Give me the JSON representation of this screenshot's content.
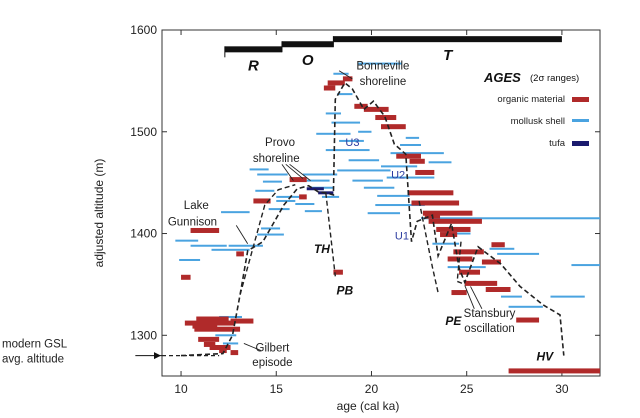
{
  "chart_data": {
    "type": "scatter",
    "xlabel": "age (cal ka)",
    "ylabel": "adjusted altitude (m)",
    "xlim": [
      9,
      32
    ],
    "ylim": [
      1260,
      1600
    ],
    "xticks": [
      10,
      15,
      20,
      25,
      30
    ],
    "yticks": [
      1300,
      1400,
      1500,
      1600
    ],
    "legend": {
      "title": "AGES",
      "subtitle": "(2σ ranges)",
      "placement": "top-right",
      "entries": [
        {
          "label": "organic material",
          "color": "#b02a2a"
        },
        {
          "label": "mollusk shell",
          "color": "#4aa3e0"
        },
        {
          "label": "tufa",
          "color": "#1a1a6e"
        }
      ]
    },
    "phase_bars": [
      {
        "label": "R",
        "x0": 12.3,
        "x1": 15.3,
        "y": 1581
      },
      {
        "label": "O",
        "x0": 15.3,
        "x1": 18.0,
        "y": 1586
      },
      {
        "label": "T",
        "x0": 18.0,
        "x1": 30.0,
        "y": 1591
      }
    ],
    "annotations": [
      {
        "text": "Bonneville",
        "x": 20.6,
        "y": 1565
      },
      {
        "text": "shoreline",
        "x": 20.6,
        "y": 1550
      },
      {
        "text": "Provo",
        "x": 15.2,
        "y": 1490
      },
      {
        "text": "shoreline",
        "x": 15.0,
        "y": 1474
      },
      {
        "text": "Lake",
        "x": 10.8,
        "y": 1428
      },
      {
        "text": "Gunnison",
        "x": 10.6,
        "y": 1412
      },
      {
        "text": "Gilbert",
        "x": 14.8,
        "y": 1288
      },
      {
        "text": "episode",
        "x": 14.8,
        "y": 1274
      },
      {
        "text": "Stansbury",
        "x": 26.2,
        "y": 1322
      },
      {
        "text": "oscillation",
        "x": 26.2,
        "y": 1307
      },
      {
        "text": "modern GSL",
        "x": 6.2,
        "y": 1292
      },
      {
        "text": "avg. altitude",
        "x": 6.2,
        "y": 1277
      }
    ],
    "event_labels": [
      {
        "text": "TH",
        "x": 17.4,
        "y": 1386
      },
      {
        "text": "PB",
        "x": 18.6,
        "y": 1345
      },
      {
        "text": "PE",
        "x": 24.3,
        "y": 1315
      },
      {
        "text": "HV",
        "x": 29.1,
        "y": 1280
      }
    ],
    "unit_labels": [
      {
        "text": "U3",
        "x": 19.0,
        "y": 1490
      },
      {
        "text": "U2",
        "x": 21.4,
        "y": 1458
      },
      {
        "text": "U1",
        "x": 21.6,
        "y": 1398
      }
    ],
    "gsl_altitude": 1280,
    "hydrograph": [
      [
        10.0,
        1280
      ],
      [
        12.2,
        1282
      ],
      [
        12.7,
        1300
      ],
      [
        13.1,
        1340
      ],
      [
        13.5,
        1383
      ],
      [
        14.3,
        1392
      ],
      [
        15.4,
        1428
      ],
      [
        16.1,
        1444
      ],
      [
        16.7,
        1447
      ],
      [
        17.2,
        1441
      ],
      [
        17.6,
        1440
      ],
      [
        18.0,
        1438
      ],
      [
        18.1,
        1532
      ],
      [
        18.6,
        1548
      ],
      [
        19.0,
        1542
      ],
      [
        19.6,
        1522
      ],
      [
        20.1,
        1530
      ],
      [
        20.7,
        1515
      ],
      [
        21.2,
        1488
      ],
      [
        21.8,
        1478
      ],
      [
        22.1,
        1392
      ],
      [
        22.4,
        1412
      ],
      [
        23.2,
        1418
      ],
      [
        23.5,
        1378
      ],
      [
        24.2,
        1410
      ],
      [
        24.6,
        1366
      ],
      [
        24.9,
        1352
      ],
      [
        25.6,
        1387
      ],
      [
        26.8,
        1370
      ],
      [
        27.8,
        1348
      ],
      [
        29.0,
        1330
      ],
      [
        29.9,
        1320
      ],
      [
        30.1,
        1280
      ]
    ],
    "hydro_branches": [
      [
        [
          13.1,
          1340
        ],
        [
          14.4,
          1428
        ],
        [
          15.1,
          1443
        ],
        [
          16.0,
          1448
        ]
      ],
      [
        [
          17.6,
          1440
        ],
        [
          18.1,
          1358
        ]
      ],
      [
        [
          22.5,
          1432
        ],
        [
          23.2,
          1367
        ],
        [
          23.5,
          1342
        ]
      ],
      [
        [
          24.7,
          1392
        ],
        [
          24.5,
          1353
        ],
        [
          24.9,
          1350
        ]
      ]
    ],
    "organic": [
      [
        10.5,
        12.0,
        1403
      ],
      [
        10.8,
        12.5,
        1316
      ],
      [
        10.2,
        12.8,
        1312
      ],
      [
        10.6,
        11.9,
        1309
      ],
      [
        10.7,
        13.1,
        1306
      ],
      [
        12.6,
        13.8,
        1314
      ],
      [
        10.9,
        12.0,
        1296
      ],
      [
        11.2,
        11.8,
        1291
      ],
      [
        11.5,
        12.6,
        1288
      ],
      [
        12.0,
        12.4,
        1285
      ],
      [
        12.6,
        13.0,
        1283
      ],
      [
        10.0,
        10.5,
        1357
      ],
      [
        12.9,
        13.3,
        1380
      ],
      [
        13.8,
        14.7,
        1432
      ],
      [
        15.7,
        16.6,
        1453
      ],
      [
        16.2,
        16.6,
        1436
      ],
      [
        17.7,
        18.6,
        1548
      ],
      [
        17.5,
        18.1,
        1543
      ],
      [
        18.5,
        19.0,
        1552
      ],
      [
        19.1,
        19.8,
        1525
      ],
      [
        19.6,
        20.9,
        1522
      ],
      [
        20.2,
        21.3,
        1514
      ],
      [
        20.5,
        21.8,
        1505
      ],
      [
        21.3,
        22.6,
        1476
      ],
      [
        22.0,
        22.8,
        1471
      ],
      [
        22.3,
        23.3,
        1460
      ],
      [
        21.9,
        24.3,
        1440
      ],
      [
        22.1,
        24.6,
        1430
      ],
      [
        22.7,
        25.3,
        1420
      ],
      [
        23.0,
        25.8,
        1412
      ],
      [
        23.4,
        25.2,
        1404
      ],
      [
        22.8,
        23.6,
        1417
      ],
      [
        24.3,
        25.9,
        1382
      ],
      [
        24.0,
        25.3,
        1375
      ],
      [
        24.6,
        25.7,
        1362
      ],
      [
        24.9,
        26.6,
        1351
      ],
      [
        25.8,
        26.8,
        1372
      ],
      [
        26.0,
        27.3,
        1345
      ],
      [
        24.2,
        25.0,
        1342
      ],
      [
        27.6,
        28.8,
        1315
      ],
      [
        27.2,
        32.0,
        1265
      ],
      [
        18.0,
        18.5,
        1362
      ],
      [
        23.6,
        24.5,
        1399
      ],
      [
        26.3,
        27.0,
        1389
      ]
    ],
    "mollusk": [
      [
        9.7,
        10.9,
        1393
      ],
      [
        10.5,
        12.4,
        1388
      ],
      [
        11.6,
        13.6,
        1384
      ],
      [
        12.5,
        14.3,
        1388
      ],
      [
        9.9,
        11.0,
        1374
      ],
      [
        12.1,
        13.6,
        1421
      ],
      [
        14.0,
        15.4,
        1399
      ],
      [
        14.2,
        15.2,
        1405
      ],
      [
        13.6,
        14.6,
        1463
      ],
      [
        14.0,
        15.6,
        1458
      ],
      [
        14.3,
        15.3,
        1451
      ],
      [
        13.9,
        14.9,
        1442
      ],
      [
        15.0,
        16.5,
        1436
      ],
      [
        15.0,
        16.0,
        1432
      ],
      [
        14.6,
        15.7,
        1424
      ],
      [
        16.0,
        17.0,
        1429
      ],
      [
        16.4,
        18.2,
        1458
      ],
      [
        16.6,
        17.8,
        1452
      ],
      [
        16.8,
        18.0,
        1445
      ],
      [
        17.4,
        18.3,
        1436
      ],
      [
        16.5,
        17.4,
        1422
      ],
      [
        18.0,
        18.8,
        1557
      ],
      [
        18.2,
        19.0,
        1537
      ],
      [
        17.6,
        18.4,
        1518
      ],
      [
        17.9,
        19.4,
        1509
      ],
      [
        17.1,
        18.9,
        1498
      ],
      [
        18.3,
        19.6,
        1491
      ],
      [
        17.6,
        19.9,
        1482
      ],
      [
        18.8,
        20.4,
        1472
      ],
      [
        18.2,
        21.0,
        1462
      ],
      [
        19.0,
        20.6,
        1452
      ],
      [
        19.6,
        21.2,
        1445
      ],
      [
        20.3,
        22.0,
        1437
      ],
      [
        20.2,
        22.8,
        1428
      ],
      [
        19.8,
        21.5,
        1420
      ],
      [
        20.8,
        23.3,
        1455
      ],
      [
        20.5,
        22.4,
        1466
      ],
      [
        21.0,
        23.8,
        1479
      ],
      [
        21.5,
        22.6,
        1487
      ],
      [
        23.0,
        24.2,
        1470
      ],
      [
        22.6,
        32.0,
        1415
      ],
      [
        23.2,
        24.6,
        1390
      ],
      [
        23.8,
        25.2,
        1400
      ],
      [
        24.0,
        26.0,
        1367
      ],
      [
        26.2,
        27.5,
        1385
      ],
      [
        26.6,
        28.8,
        1380
      ],
      [
        26.8,
        27.9,
        1338
      ],
      [
        27.2,
        29.0,
        1328
      ],
      [
        29.4,
        31.2,
        1338
      ],
      [
        30.5,
        32.0,
        1369
      ],
      [
        12.0,
        13.2,
        1318
      ],
      [
        11.8,
        12.9,
        1300
      ],
      [
        12.2,
        13.0,
        1292
      ],
      [
        19.3,
        21.6,
        1567
      ],
      [
        21.8,
        22.5,
        1494
      ],
      [
        19.3,
        20.0,
        1500
      ]
    ],
    "tufa": [
      [
        17.2,
        18.0,
        1440
      ],
      [
        16.6,
        17.5,
        1444
      ]
    ]
  }
}
